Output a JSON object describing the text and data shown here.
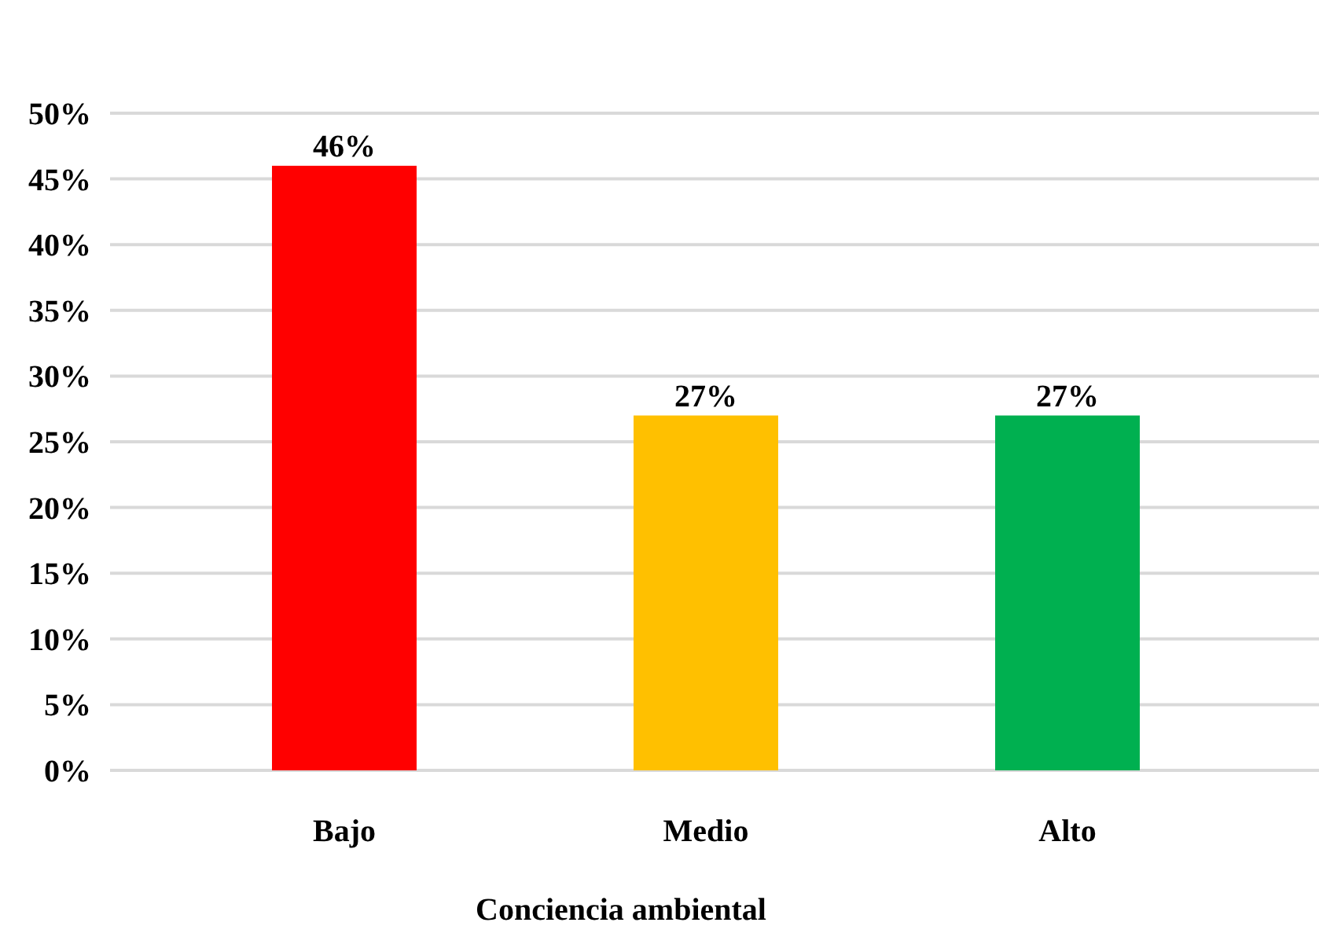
{
  "chart_data": {
    "type": "bar",
    "xlabel": "Conciencia ambiental",
    "categories": [
      "Bajo",
      "Medio",
      "Alto"
    ],
    "values": [
      46,
      27,
      27
    ],
    "colors": [
      "#ff0000",
      "#ffc000",
      "#00b050"
    ],
    "ylim": [
      0,
      50
    ],
    "yticks": [
      {
        "value": 0,
        "label": "0%"
      },
      {
        "value": 5,
        "label": "5%"
      },
      {
        "value": 10,
        "label": "10%"
      },
      {
        "value": 15,
        "label": "15%"
      },
      {
        "value": 20,
        "label": "20%"
      },
      {
        "value": 25,
        "label": "25%"
      },
      {
        "value": 30,
        "label": "30%"
      },
      {
        "value": 35,
        "label": "35%"
      },
      {
        "value": 40,
        "label": "40%"
      },
      {
        "value": 45,
        "label": "45%"
      },
      {
        "value": 50,
        "label": "50%"
      }
    ],
    "value_labels": [
      "46%",
      "27%",
      "27%"
    ],
    "grid": true
  }
}
